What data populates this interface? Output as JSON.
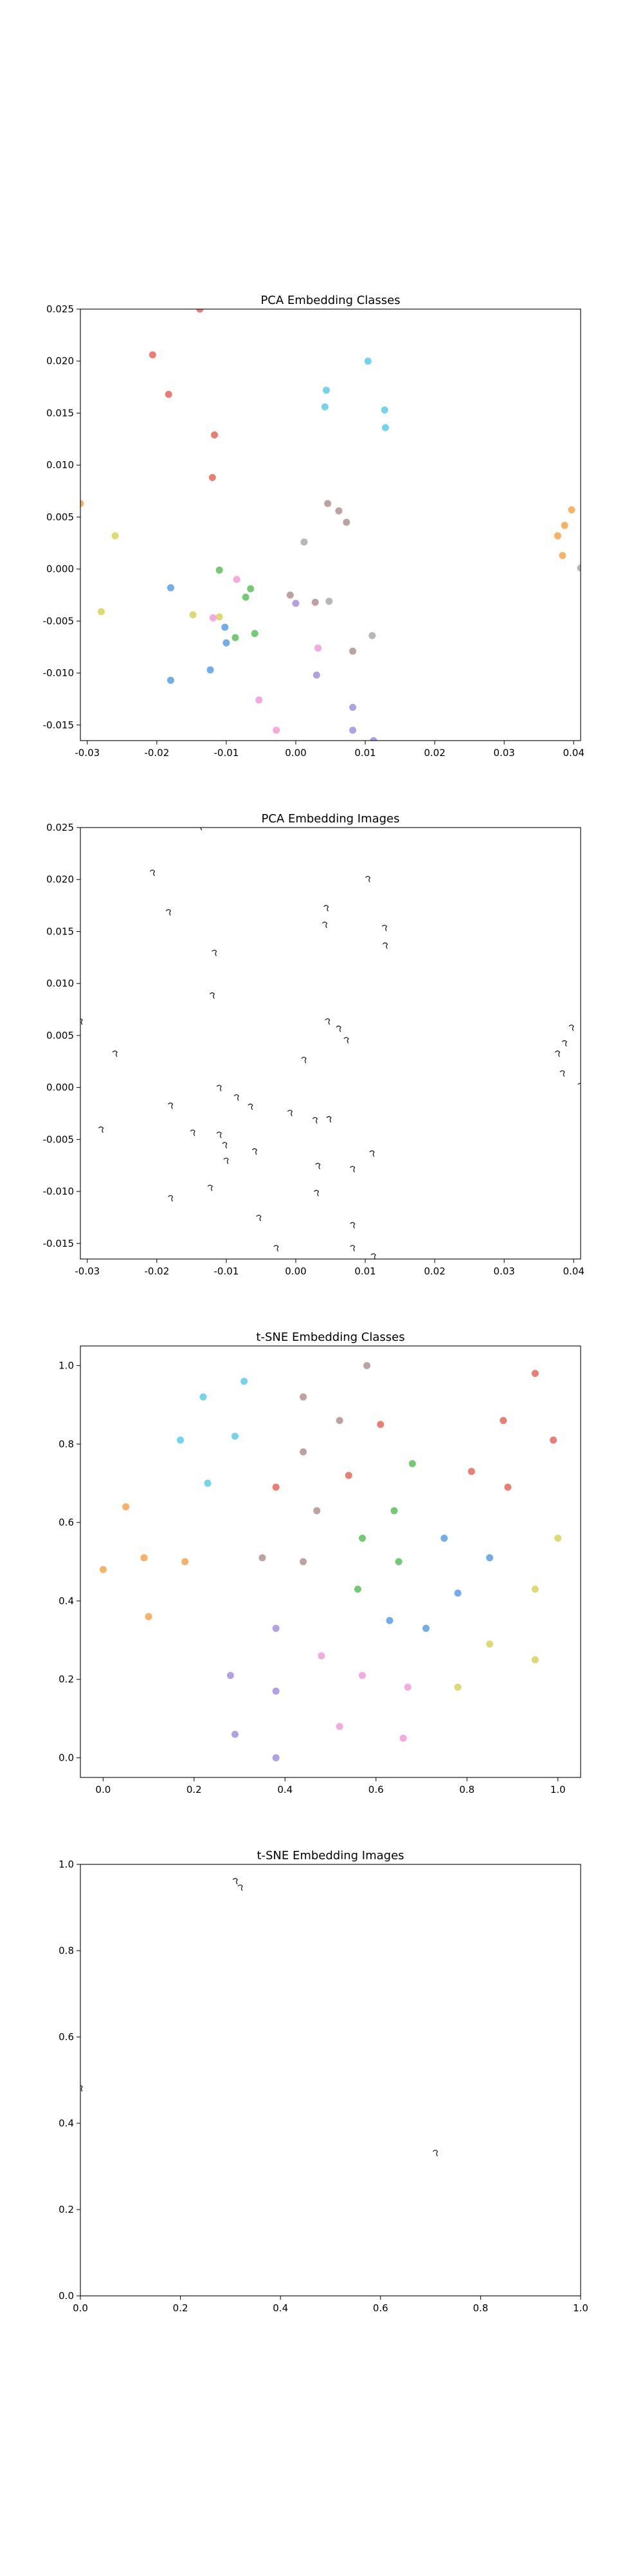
{
  "colors": {
    "red": "#e8675a",
    "orange": "#f6a54c",
    "yellow": "#d8d45a",
    "green": "#5bc15b",
    "cyan": "#5dcde6",
    "blue": "#5a9ee6",
    "purple": "#a58fe0",
    "pink": "#f39bd8",
    "mauve": "#b29292",
    "gray": "#aaaaaa"
  },
  "chart_data": [
    {
      "id": "pca-classes",
      "type": "scatter",
      "title": "PCA Embedding Classes",
      "xlabel": "",
      "ylabel": "",
      "xlim": [
        -0.031,
        0.041
      ],
      "ylim": [
        -0.0165,
        0.025
      ],
      "xticks": [
        "-0.03",
        "-0.02",
        "-0.01",
        "0.00",
        "0.01",
        "0.02",
        "0.03",
        "0.04"
      ],
      "yticks": [
        "-0.015",
        "-0.010",
        "-0.005",
        "0.000",
        "0.005",
        "0.010",
        "0.015",
        "0.020",
        "0.025"
      ],
      "grid": false,
      "marker": "dot",
      "points": [
        {
          "x": -0.0138,
          "y": 0.025,
          "color": "red"
        },
        {
          "x": -0.0206,
          "y": 0.0206,
          "color": "red"
        },
        {
          "x": -0.0183,
          "y": 0.0168,
          "color": "red"
        },
        {
          "x": -0.0117,
          "y": 0.0129,
          "color": "red"
        },
        {
          "x": -0.012,
          "y": 0.0088,
          "color": "red"
        },
        {
          "x": 0.0104,
          "y": 0.02,
          "color": "cyan"
        },
        {
          "x": 0.0044,
          "y": 0.0172,
          "color": "cyan"
        },
        {
          "x": 0.0042,
          "y": 0.0156,
          "color": "cyan"
        },
        {
          "x": 0.0128,
          "y": 0.0153,
          "color": "cyan"
        },
        {
          "x": 0.0129,
          "y": 0.0136,
          "color": "cyan"
        },
        {
          "x": -0.031,
          "y": 0.0063,
          "color": "orange"
        },
        {
          "x": 0.0397,
          "y": 0.0057,
          "color": "orange"
        },
        {
          "x": 0.0387,
          "y": 0.0042,
          "color": "orange"
        },
        {
          "x": 0.0377,
          "y": 0.0032,
          "color": "orange"
        },
        {
          "x": 0.0384,
          "y": 0.0013,
          "color": "orange"
        },
        {
          "x": -0.026,
          "y": 0.0032,
          "color": "yellow"
        },
        {
          "x": -0.028,
          "y": -0.0041,
          "color": "yellow"
        },
        {
          "x": -0.0148,
          "y": -0.0044,
          "color": "yellow"
        },
        {
          "x": -0.011,
          "y": -0.0046,
          "color": "yellow"
        },
        {
          "x": 0.0046,
          "y": 0.0063,
          "color": "mauve"
        },
        {
          "x": 0.0062,
          "y": 0.0056,
          "color": "mauve"
        },
        {
          "x": 0.0073,
          "y": 0.0045,
          "color": "mauve"
        },
        {
          "x": 0.0012,
          "y": 0.0026,
          "color": "gray"
        },
        {
          "x": 0.041,
          "y": 0.0001,
          "color": "gray"
        },
        {
          "x": -0.011,
          "y": -0.0001,
          "color": "green"
        },
        {
          "x": -0.0065,
          "y": -0.0019,
          "color": "green"
        },
        {
          "x": -0.0072,
          "y": -0.0027,
          "color": "green"
        },
        {
          "x": -0.0087,
          "y": -0.0066,
          "color": "green"
        },
        {
          "x": -0.0059,
          "y": -0.0062,
          "color": "green"
        },
        {
          "x": -0.0085,
          "y": -0.001,
          "color": "pink"
        },
        {
          "x": -0.0119,
          "y": -0.0047,
          "color": "pink"
        },
        {
          "x": -0.0053,
          "y": -0.0126,
          "color": "pink"
        },
        {
          "x": -0.0028,
          "y": -0.0155,
          "color": "pink"
        },
        {
          "x": 0.0032,
          "y": -0.0076,
          "color": "pink"
        },
        {
          "x": -0.018,
          "y": -0.0018,
          "color": "blue"
        },
        {
          "x": -0.0102,
          "y": -0.0056,
          "color": "blue"
        },
        {
          "x": -0.01,
          "y": -0.0071,
          "color": "blue"
        },
        {
          "x": -0.0123,
          "y": -0.0097,
          "color": "blue"
        },
        {
          "x": -0.018,
          "y": -0.0107,
          "color": "blue"
        },
        {
          "x": -0.0008,
          "y": -0.0025,
          "color": "mauve"
        },
        {
          "x": 0.0,
          "y": -0.0033,
          "color": "purple"
        },
        {
          "x": 0.0028,
          "y": -0.0032,
          "color": "mauve"
        },
        {
          "x": 0.0048,
          "y": -0.0031,
          "color": "gray"
        },
        {
          "x": 0.011,
          "y": -0.0064,
          "color": "gray"
        },
        {
          "x": 0.0082,
          "y": -0.0079,
          "color": "mauve"
        },
        {
          "x": 0.003,
          "y": -0.0102,
          "color": "purple"
        },
        {
          "x": 0.0082,
          "y": -0.0133,
          "color": "purple"
        },
        {
          "x": 0.0082,
          "y": -0.0155,
          "color": "purple"
        },
        {
          "x": 0.0112,
          "y": -0.0165,
          "color": "purple"
        }
      ]
    },
    {
      "id": "pca-images",
      "type": "scatter",
      "title": "PCA Embedding Images",
      "xlabel": "",
      "ylabel": "",
      "xlim": [
        -0.031,
        0.041
      ],
      "ylim": [
        -0.0165,
        0.025
      ],
      "xticks": [
        "-0.03",
        "-0.02",
        "-0.01",
        "0.00",
        "0.01",
        "0.02",
        "0.03",
        "0.04"
      ],
      "yticks": [
        "-0.015",
        "-0.010",
        "-0.005",
        "0.000",
        "0.005",
        "0.010",
        "0.015",
        "0.020",
        "0.025"
      ],
      "grid": false,
      "marker": "glyph",
      "points": [
        {
          "x": -0.0138,
          "y": 0.025
        },
        {
          "x": -0.0206,
          "y": 0.0206
        },
        {
          "x": -0.0183,
          "y": 0.0168
        },
        {
          "x": -0.0117,
          "y": 0.0129
        },
        {
          "x": -0.012,
          "y": 0.0088
        },
        {
          "x": 0.0104,
          "y": 0.02
        },
        {
          "x": 0.0044,
          "y": 0.0172
        },
        {
          "x": 0.0042,
          "y": 0.0156
        },
        {
          "x": 0.0128,
          "y": 0.0153
        },
        {
          "x": 0.0129,
          "y": 0.0136
        },
        {
          "x": -0.031,
          "y": 0.0063
        },
        {
          "x": 0.0397,
          "y": 0.0057
        },
        {
          "x": 0.0387,
          "y": 0.0042
        },
        {
          "x": 0.0377,
          "y": 0.0032
        },
        {
          "x": 0.0384,
          "y": 0.0013
        },
        {
          "x": -0.026,
          "y": 0.0032
        },
        {
          "x": -0.028,
          "y": -0.0041
        },
        {
          "x": -0.0148,
          "y": -0.0044
        },
        {
          "x": -0.011,
          "y": -0.0046
        },
        {
          "x": 0.0046,
          "y": 0.0063
        },
        {
          "x": 0.0062,
          "y": 0.0056
        },
        {
          "x": 0.0073,
          "y": 0.0045
        },
        {
          "x": 0.0012,
          "y": 0.0026
        },
        {
          "x": 0.041,
          "y": 0.0001
        },
        {
          "x": -0.011,
          "y": -0.0001
        },
        {
          "x": -0.0065,
          "y": -0.0019
        },
        {
          "x": -0.0085,
          "y": -0.001
        },
        {
          "x": -0.018,
          "y": -0.0018
        },
        {
          "x": -0.0008,
          "y": -0.0025
        },
        {
          "x": 0.0028,
          "y": -0.0032
        },
        {
          "x": 0.0048,
          "y": -0.0031
        },
        {
          "x": -0.0102,
          "y": -0.0056
        },
        {
          "x": -0.01,
          "y": -0.0071
        },
        {
          "x": -0.0059,
          "y": -0.0062
        },
        {
          "x": 0.011,
          "y": -0.0064
        },
        {
          "x": 0.0032,
          "y": -0.0076
        },
        {
          "x": 0.0082,
          "y": -0.0079
        },
        {
          "x": -0.0123,
          "y": -0.0097
        },
        {
          "x": 0.003,
          "y": -0.0102
        },
        {
          "x": -0.018,
          "y": -0.0107
        },
        {
          "x": -0.0053,
          "y": -0.0126
        },
        {
          "x": 0.0082,
          "y": -0.0133
        },
        {
          "x": -0.0028,
          "y": -0.0155
        },
        {
          "x": 0.0082,
          "y": -0.0155
        },
        {
          "x": 0.0112,
          "y": -0.0163
        }
      ]
    },
    {
      "id": "tsne-classes",
      "type": "scatter",
      "title": "t-SNE Embedding Classes",
      "xlabel": "",
      "ylabel": "",
      "xlim": [
        -0.05,
        1.05
      ],
      "ylim": [
        -0.05,
        1.05
      ],
      "xticks": [
        "0.0",
        "0.2",
        "0.4",
        "0.6",
        "0.8",
        "1.0"
      ],
      "yticks": [
        "0.0",
        "0.2",
        "0.4",
        "0.6",
        "0.8",
        "1.0"
      ],
      "grid": false,
      "marker": "dot",
      "points": [
        {
          "x": 0.22,
          "y": 0.92,
          "color": "cyan"
        },
        {
          "x": 0.31,
          "y": 0.96,
          "color": "cyan"
        },
        {
          "x": 0.17,
          "y": 0.81,
          "color": "cyan"
        },
        {
          "x": 0.29,
          "y": 0.82,
          "color": "cyan"
        },
        {
          "x": 0.23,
          "y": 0.7,
          "color": "cyan"
        },
        {
          "x": 0.44,
          "y": 0.92,
          "color": "mauve"
        },
        {
          "x": 0.58,
          "y": 1.0,
          "color": "mauve"
        },
        {
          "x": 0.52,
          "y": 0.86,
          "color": "mauve"
        },
        {
          "x": 0.44,
          "y": 0.78,
          "color": "mauve"
        },
        {
          "x": 0.47,
          "y": 0.63,
          "color": "mauve"
        },
        {
          "x": 0.38,
          "y": 0.69,
          "color": "red"
        },
        {
          "x": 0.61,
          "y": 0.85,
          "color": "red"
        },
        {
          "x": 0.54,
          "y": 0.72,
          "color": "red"
        },
        {
          "x": 0.95,
          "y": 0.98,
          "color": "red"
        },
        {
          "x": 0.88,
          "y": 0.86,
          "color": "red"
        },
        {
          "x": 0.99,
          "y": 0.81,
          "color": "red"
        },
        {
          "x": 0.81,
          "y": 0.73,
          "color": "red"
        },
        {
          "x": 0.89,
          "y": 0.69,
          "color": "red"
        },
        {
          "x": 0.05,
          "y": 0.64,
          "color": "orange"
        },
        {
          "x": 0.0,
          "y": 0.48,
          "color": "orange"
        },
        {
          "x": 0.09,
          "y": 0.51,
          "color": "orange"
        },
        {
          "x": 0.18,
          "y": 0.5,
          "color": "orange"
        },
        {
          "x": 0.1,
          "y": 0.36,
          "color": "orange"
        },
        {
          "x": 0.35,
          "y": 0.51,
          "color": "mauve"
        },
        {
          "x": 0.44,
          "y": 0.5,
          "color": "mauve"
        },
        {
          "x": 0.68,
          "y": 0.75,
          "color": "green"
        },
        {
          "x": 0.64,
          "y": 0.63,
          "color": "green"
        },
        {
          "x": 0.57,
          "y": 0.56,
          "color": "green"
        },
        {
          "x": 0.65,
          "y": 0.5,
          "color": "green"
        },
        {
          "x": 0.56,
          "y": 0.43,
          "color": "green"
        },
        {
          "x": 1.0,
          "y": 0.56,
          "color": "yellow"
        },
        {
          "x": 0.95,
          "y": 0.43,
          "color": "yellow"
        },
        {
          "x": 0.85,
          "y": 0.29,
          "color": "yellow"
        },
        {
          "x": 0.95,
          "y": 0.25,
          "color": "yellow"
        },
        {
          "x": 0.78,
          "y": 0.18,
          "color": "yellow"
        },
        {
          "x": 0.75,
          "y": 0.56,
          "color": "blue"
        },
        {
          "x": 0.85,
          "y": 0.51,
          "color": "blue"
        },
        {
          "x": 0.78,
          "y": 0.42,
          "color": "blue"
        },
        {
          "x": 0.63,
          "y": 0.35,
          "color": "blue"
        },
        {
          "x": 0.71,
          "y": 0.33,
          "color": "blue"
        },
        {
          "x": 0.38,
          "y": 0.33,
          "color": "purple"
        },
        {
          "x": 0.28,
          "y": 0.21,
          "color": "purple"
        },
        {
          "x": 0.38,
          "y": 0.17,
          "color": "purple"
        },
        {
          "x": 0.29,
          "y": 0.06,
          "color": "purple"
        },
        {
          "x": 0.38,
          "y": 0.0,
          "color": "purple"
        },
        {
          "x": 0.48,
          "y": 0.26,
          "color": "pink"
        },
        {
          "x": 0.57,
          "y": 0.21,
          "color": "pink"
        },
        {
          "x": 0.67,
          "y": 0.18,
          "color": "pink"
        },
        {
          "x": 0.52,
          "y": 0.08,
          "color": "pink"
        },
        {
          "x": 0.66,
          "y": 0.05,
          "color": "pink"
        }
      ]
    },
    {
      "id": "tsne-images",
      "type": "scatter",
      "title": "t-SNE Embedding Images",
      "xlabel": "",
      "ylabel": "",
      "xlim": [
        0.0,
        1.0
      ],
      "ylim": [
        0.0,
        1.0
      ],
      "xticks": [
        "0.0",
        "0.2",
        "0.4",
        "0.6",
        "0.8",
        "1.0"
      ],
      "yticks": [
        "0.0",
        "0.2",
        "0.4",
        "0.6",
        "0.8",
        "1.0"
      ],
      "grid": false,
      "marker": "glyph",
      "points": [
        {
          "x": 0.31,
          "y": 0.96
        },
        {
          "x": 0.32,
          "y": 0.945
        },
        {
          "x": 0.0,
          "y": 0.48
        },
        {
          "x": 0.71,
          "y": 0.33
        }
      ]
    }
  ]
}
